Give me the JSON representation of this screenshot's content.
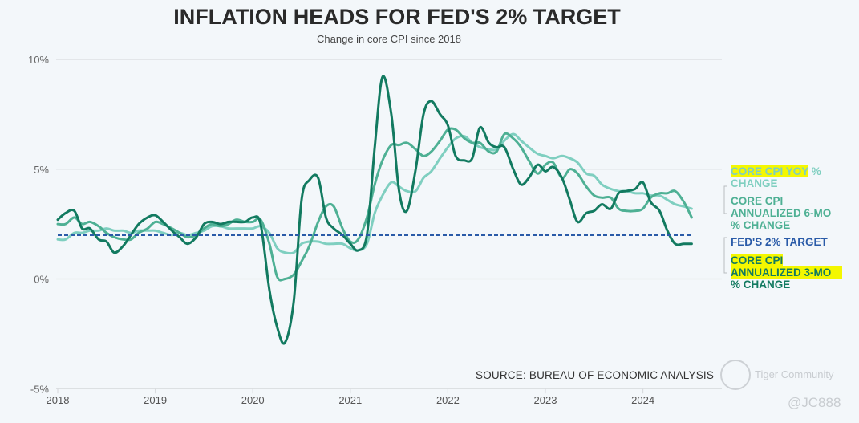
{
  "chart_data": {
    "type": "line",
    "title": "INFLATION HEADS FOR FED'S 2% TARGET",
    "subtitle": "Change in core CPI since 2018",
    "xlabel": "",
    "ylabel": "",
    "ylim": [
      -5,
      10
    ],
    "xlim": [
      2018.0,
      2024.5
    ],
    "yticks": [
      10,
      5,
      0,
      -5
    ],
    "ytick_labels": [
      "10%",
      "5%",
      "0%",
      "-5%"
    ],
    "xticks": [
      2018,
      2019,
      2020,
      2021,
      2022,
      2023,
      2024
    ],
    "xtick_labels": [
      "2018",
      "2019",
      "2020",
      "2021",
      "2022",
      "2023",
      "2024"
    ],
    "grid": "horizontal",
    "legend_placement": "right",
    "source": "SOURCE: BUREAU OF ECONOMIC ANALYSIS",
    "series": [
      {
        "name": "CORE CPI YOY % CHANGE",
        "label_lines": [
          "CORE CPI YOY",
          " %",
          "CHANGE"
        ],
        "color": "#7fcfc0",
        "dashed": false,
        "x": [
          2018.0,
          2018.08,
          2018.17,
          2018.25,
          2018.33,
          2018.42,
          2018.5,
          2018.58,
          2018.67,
          2018.75,
          2018.83,
          2018.92,
          2019.0,
          2019.08,
          2019.17,
          2019.25,
          2019.33,
          2019.42,
          2019.5,
          2019.58,
          2019.67,
          2019.75,
          2019.83,
          2019.92,
          2020.0,
          2020.08,
          2020.17,
          2020.25,
          2020.33,
          2020.42,
          2020.5,
          2020.58,
          2020.67,
          2020.75,
          2020.83,
          2020.92,
          2021.0,
          2021.08,
          2021.17,
          2021.25,
          2021.33,
          2021.42,
          2021.5,
          2021.58,
          2021.67,
          2021.75,
          2021.83,
          2021.92,
          2022.0,
          2022.08,
          2022.17,
          2022.25,
          2022.33,
          2022.42,
          2022.5,
          2022.58,
          2022.67,
          2022.75,
          2022.83,
          2022.92,
          2023.0,
          2023.08,
          2023.17,
          2023.25,
          2023.33,
          2023.42,
          2023.5,
          2023.58,
          2023.67,
          2023.75,
          2023.83,
          2023.92,
          2024.0,
          2024.08,
          2024.17,
          2024.25,
          2024.33,
          2024.42,
          2024.5
        ],
        "y": [
          1.8,
          1.8,
          2.1,
          2.1,
          2.2,
          2.2,
          2.3,
          2.2,
          2.2,
          2.1,
          2.2,
          2.2,
          2.2,
          2.1,
          2.0,
          2.1,
          2.0,
          2.1,
          2.2,
          2.4,
          2.4,
          2.3,
          2.3,
          2.3,
          2.3,
          2.4,
          2.1,
          1.4,
          1.2,
          1.2,
          1.6,
          1.7,
          1.7,
          1.6,
          1.6,
          1.6,
          1.4,
          1.3,
          1.6,
          3.0,
          3.8,
          4.4,
          4.2,
          4.0,
          4.0,
          4.6,
          4.9,
          5.5,
          6.0,
          6.4,
          6.5,
          6.2,
          6.0,
          5.9,
          5.9,
          6.3,
          6.6,
          6.3,
          6.0,
          5.7,
          5.6,
          5.5,
          5.6,
          5.5,
          5.3,
          4.8,
          4.7,
          4.3,
          4.1,
          4.0,
          4.0,
          3.9,
          3.9,
          3.8,
          3.8,
          3.6,
          3.4,
          3.3,
          3.2
        ]
      },
      {
        "name": "CORE CPI ANNUALIZED 6-MO % CHANGE",
        "label_lines": [
          "CORE CPI",
          "ANNUALIZED 6-MO",
          "% CHANGE"
        ],
        "color": "#4eb094",
        "dashed": false,
        "x": [
          2018.0,
          2018.08,
          2018.17,
          2018.25,
          2018.33,
          2018.42,
          2018.5,
          2018.58,
          2018.67,
          2018.75,
          2018.83,
          2018.92,
          2019.0,
          2019.08,
          2019.17,
          2019.25,
          2019.33,
          2019.42,
          2019.5,
          2019.58,
          2019.67,
          2019.75,
          2019.83,
          2019.92,
          2020.0,
          2020.08,
          2020.17,
          2020.25,
          2020.33,
          2020.42,
          2020.5,
          2020.58,
          2020.67,
          2020.75,
          2020.83,
          2020.92,
          2021.0,
          2021.08,
          2021.17,
          2021.25,
          2021.33,
          2021.42,
          2021.5,
          2021.58,
          2021.67,
          2021.75,
          2021.83,
          2021.92,
          2022.0,
          2022.08,
          2022.17,
          2022.25,
          2022.33,
          2022.42,
          2022.5,
          2022.58,
          2022.67,
          2022.75,
          2022.83,
          2022.92,
          2023.0,
          2023.08,
          2023.17,
          2023.25,
          2023.33,
          2023.42,
          2023.5,
          2023.58,
          2023.67,
          2023.75,
          2023.83,
          2023.92,
          2024.0,
          2024.08,
          2024.17,
          2024.25,
          2024.33,
          2024.42,
          2024.5
        ],
        "y": [
          2.5,
          2.5,
          2.8,
          2.5,
          2.6,
          2.4,
          2.1,
          1.9,
          1.8,
          1.8,
          2.1,
          2.3,
          2.6,
          2.5,
          2.3,
          2.1,
          1.9,
          2.0,
          2.3,
          2.5,
          2.4,
          2.5,
          2.7,
          2.6,
          2.6,
          2.7,
          1.6,
          0.1,
          0.0,
          0.2,
          0.8,
          1.5,
          2.6,
          3.3,
          3.3,
          2.3,
          1.7,
          1.8,
          2.8,
          4.3,
          5.4,
          6.1,
          6.1,
          6.2,
          5.9,
          5.6,
          5.8,
          6.3,
          6.8,
          6.8,
          6.4,
          6.2,
          6.2,
          5.8,
          5.8,
          6.6,
          6.4,
          6.0,
          5.4,
          4.8,
          5.2,
          5.3,
          4.6,
          5.0,
          4.8,
          4.2,
          3.8,
          3.7,
          3.7,
          3.2,
          3.1,
          3.1,
          3.2,
          3.7,
          3.9,
          3.9,
          4.0,
          3.5,
          2.8
        ]
      },
      {
        "name": "CORE CPI ANNUALIZED 3-MO % CHANGE",
        "label_lines": [
          "CORE CPI",
          "ANNUALIZED 3-MO",
          "% CHANGE"
        ],
        "color": "#127a60",
        "dashed": false,
        "x": [
          2018.0,
          2018.08,
          2018.17,
          2018.25,
          2018.33,
          2018.42,
          2018.5,
          2018.58,
          2018.67,
          2018.75,
          2018.83,
          2018.92,
          2019.0,
          2019.08,
          2019.17,
          2019.25,
          2019.33,
          2019.42,
          2019.5,
          2019.58,
          2019.67,
          2019.75,
          2019.83,
          2019.92,
          2020.0,
          2020.08,
          2020.17,
          2020.25,
          2020.33,
          2020.42,
          2020.5,
          2020.58,
          2020.67,
          2020.75,
          2020.83,
          2020.92,
          2021.0,
          2021.08,
          2021.17,
          2021.25,
          2021.33,
          2021.42,
          2021.5,
          2021.58,
          2021.67,
          2021.75,
          2021.83,
          2021.92,
          2022.0,
          2022.08,
          2022.17,
          2022.25,
          2022.33,
          2022.42,
          2022.5,
          2022.58,
          2022.67,
          2022.75,
          2022.83,
          2022.92,
          2023.0,
          2023.08,
          2023.17,
          2023.25,
          2023.33,
          2023.42,
          2023.5,
          2023.58,
          2023.67,
          2023.75,
          2023.83,
          2023.92,
          2024.0,
          2024.08,
          2024.17,
          2024.25,
          2024.33,
          2024.42,
          2024.5
        ],
        "y": [
          2.7,
          3.0,
          3.1,
          2.3,
          2.3,
          1.8,
          1.7,
          1.2,
          1.5,
          2.0,
          2.5,
          2.8,
          2.9,
          2.6,
          2.2,
          1.9,
          1.6,
          1.9,
          2.5,
          2.6,
          2.5,
          2.6,
          2.6,
          2.6,
          2.8,
          2.5,
          -0.5,
          -2.2,
          -2.9,
          -1.0,
          3.6,
          4.5,
          4.6,
          2.8,
          2.3,
          2.0,
          1.6,
          1.3,
          2.0,
          6.0,
          9.2,
          7.5,
          4.0,
          3.1,
          5.0,
          7.5,
          8.1,
          7.5,
          7.0,
          5.6,
          5.4,
          5.5,
          6.9,
          6.2,
          6.0,
          6.0,
          5.0,
          4.3,
          4.6,
          5.2,
          4.9,
          5.1,
          4.6,
          3.6,
          2.6,
          3.0,
          3.1,
          3.4,
          3.2,
          3.9,
          4.0,
          4.1,
          4.4,
          3.5,
          3.1,
          2.2,
          1.6,
          1.6,
          1.6
        ]
      },
      {
        "name": "FED'S 2% TARGET",
        "label_lines": [
          "FED'S 2% TARGET"
        ],
        "color": "#2a5ba8",
        "dashed": true,
        "x": [
          2018.0,
          2024.5
        ],
        "y": [
          2,
          2
        ]
      }
    ]
  },
  "watermark": {
    "brand": "Tiger Community",
    "handle": "@JC888"
  },
  "colors": {
    "background": "#f3f7fa",
    "gridline": "#d9dcdf",
    "highlight": "#f4f700"
  }
}
